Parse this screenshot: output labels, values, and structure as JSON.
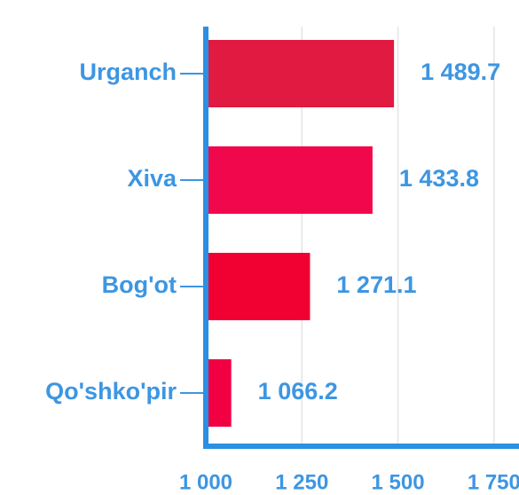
{
  "chart_data": {
    "type": "bar",
    "orientation": "horizontal",
    "categories": [
      "Urganch",
      "Xiva",
      "Bog'ot",
      "Qo'shko'pir"
    ],
    "values": [
      1489.7,
      1433.8,
      1271.1,
      1066.2
    ],
    "value_labels": [
      "1 489.7",
      "1 433.8",
      "1 271.1",
      "1 066.2"
    ],
    "colors": [
      "#e11a42",
      "#f1084c",
      "#f10032",
      "#f10042"
    ],
    "xlim": [
      1000,
      1815
    ],
    "xticks": [
      {
        "value": 1000,
        "label": "1 000"
      },
      {
        "value": 1250,
        "label": "1 250"
      },
      {
        "value": 1500,
        "label": "1 500"
      },
      {
        "value": 1750,
        "label": "1 750"
      }
    ],
    "grid": true
  }
}
